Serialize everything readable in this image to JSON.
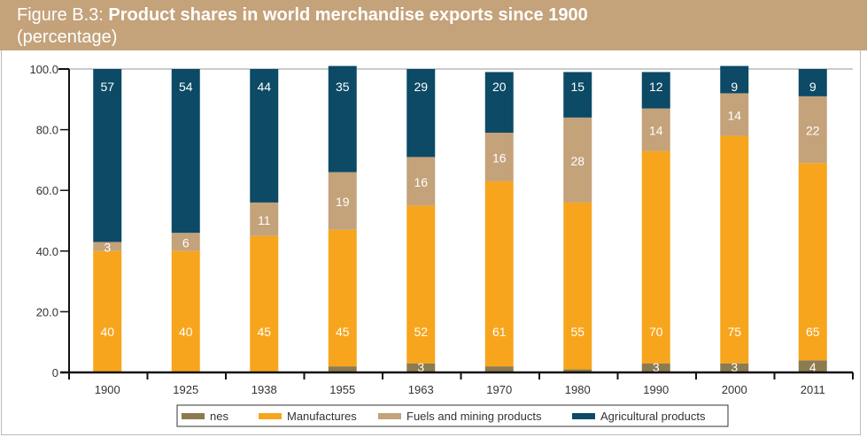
{
  "header": {
    "figure_label": "Figure B.3: ",
    "title": "Product shares in world merchandise exports since 1900",
    "subtitle": "(percentage)"
  },
  "chart_data": {
    "type": "stacked-bar",
    "title": "Product shares in world merchandise exports since 1900",
    "subtitle": "(percentage)",
    "categories": [
      "1900",
      "1925",
      "1938",
      "1955",
      "1963",
      "1970",
      "1980",
      "1990",
      "2000",
      "2011"
    ],
    "ylim": [
      0,
      100
    ],
    "yticks": [
      "0",
      "20.0",
      "40.0",
      "60.0",
      "80.0",
      "100.0"
    ],
    "grid": false,
    "legend_position": "bottom",
    "series": [
      {
        "name": "nes",
        "color": "#8c7b4f",
        "values": [
          0,
          0,
          0,
          2,
          3,
          2,
          1,
          3,
          3,
          4
        ],
        "labels": [
          null,
          null,
          null,
          null,
          "3",
          null,
          null,
          "3",
          "3",
          "4"
        ]
      },
      {
        "name": "Manufactures",
        "color": "#f7a51d",
        "values": [
          40,
          40,
          45,
          45,
          52,
          61,
          55,
          70,
          75,
          65
        ],
        "labels": [
          "40",
          "40",
          "45",
          "45",
          "52",
          "61",
          "55",
          "70",
          "75",
          "65"
        ]
      },
      {
        "name": "Fuels and mining products",
        "color": "#c4a27a",
        "values": [
          3,
          6,
          11,
          19,
          16,
          16,
          28,
          14,
          14,
          22
        ],
        "labels": [
          "3",
          "6",
          "11",
          "19",
          "16",
          "16",
          "28",
          "14",
          "14",
          "22"
        ]
      },
      {
        "name": "Agricultural products",
        "color": "#0c4a66",
        "values": [
          57,
          54,
          44,
          35,
          29,
          20,
          15,
          12,
          9,
          9
        ],
        "labels": [
          "57",
          "54",
          "44",
          "35",
          "29",
          "20",
          "15",
          "12",
          "9",
          "9"
        ]
      }
    ]
  }
}
